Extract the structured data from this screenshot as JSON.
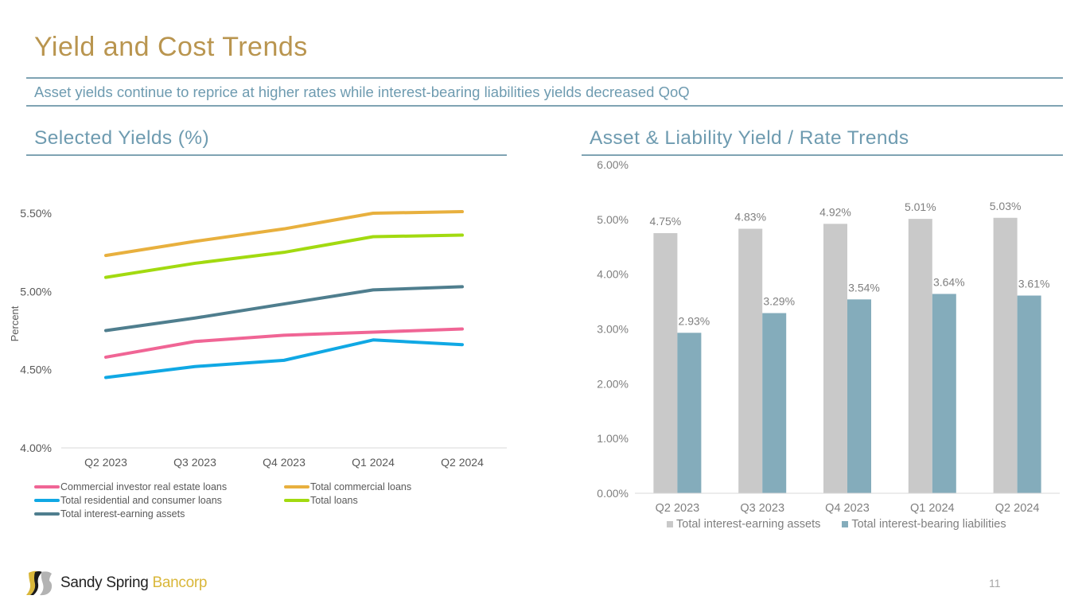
{
  "page": {
    "title": "Yield and Cost Trends",
    "subtitle": "Asset yields continue to reprice at higher rates while interest-bearing liabilities yields decreased QoQ",
    "page_number": "11"
  },
  "logo": {
    "name_part1": "Sandy Spring ",
    "name_part2": "Bancorp",
    "colors": {
      "gold": "#D9B73A",
      "black": "#1A1A1A",
      "gray": "#B3B3B3"
    }
  },
  "colors": {
    "title": "#B9954F",
    "accent": "#6E9BB0",
    "rule": "#7FA3B3"
  },
  "chart_data": [
    {
      "type": "line",
      "title": "Selected Yields (%)",
      "xlabel": "",
      "ylabel": "Percent",
      "categories": [
        "Q2 2023",
        "Q3 2023",
        "Q4 2023",
        "Q1 2024",
        "Q2 2024"
      ],
      "ylim": [
        4.0,
        5.5
      ],
      "yticks": [
        4.0,
        4.5,
        5.0,
        5.5
      ],
      "ytick_labels": [
        "4.00%",
        "4.50%",
        "5.00%",
        "5.50%"
      ],
      "grid": false,
      "legend_position": "bottom",
      "series": [
        {
          "name": "Commercial investor real estate loans",
          "color": "#F06595",
          "values": [
            4.58,
            4.68,
            4.72,
            4.74,
            4.76
          ]
        },
        {
          "name": "Total commercial loans",
          "color": "#E8B03E",
          "values": [
            5.23,
            5.32,
            5.4,
            5.5,
            5.51
          ]
        },
        {
          "name": "Total residential and consumer loans",
          "color": "#10A8E4",
          "values": [
            4.45,
            4.52,
            4.56,
            4.69,
            4.66
          ]
        },
        {
          "name": "Total loans",
          "color": "#A2DA10",
          "values": [
            5.09,
            5.18,
            5.25,
            5.35,
            5.36
          ]
        },
        {
          "name": "Total interest-earning assets",
          "color": "#4F7E8E",
          "values": [
            4.75,
            4.83,
            4.92,
            5.01,
            5.03
          ]
        }
      ]
    },
    {
      "type": "bar",
      "title": "Asset & Liability Yield / Rate Trends",
      "xlabel": "",
      "ylabel": "",
      "categories": [
        "Q2 2023",
        "Q3 2023",
        "Q4 2023",
        "Q1 2024",
        "Q2 2024"
      ],
      "ylim": [
        0,
        6
      ],
      "yticks": [
        0,
        1,
        2,
        3,
        4,
        5,
        6
      ],
      "ytick_labels": [
        "0.00%",
        "1.00%",
        "2.00%",
        "3.00%",
        "4.00%",
        "5.00%",
        "6.00%"
      ],
      "grid": false,
      "legend_position": "bottom",
      "series": [
        {
          "name": "Total interest-earning assets",
          "color": "#C9C9C9",
          "values": [
            4.75,
            4.83,
            4.92,
            5.01,
            5.03
          ],
          "labels": [
            "4.75%",
            "4.83%",
            "4.92%",
            "5.01%",
            "5.03%"
          ]
        },
        {
          "name": "Total interest-bearing liabilities",
          "color": "#84ACBB",
          "values": [
            2.93,
            3.29,
            3.54,
            3.64,
            3.61
          ],
          "labels": [
            "2.93%",
            "3.29%",
            "3.54%",
            "3.64%",
            "3.61%"
          ]
        }
      ]
    }
  ]
}
